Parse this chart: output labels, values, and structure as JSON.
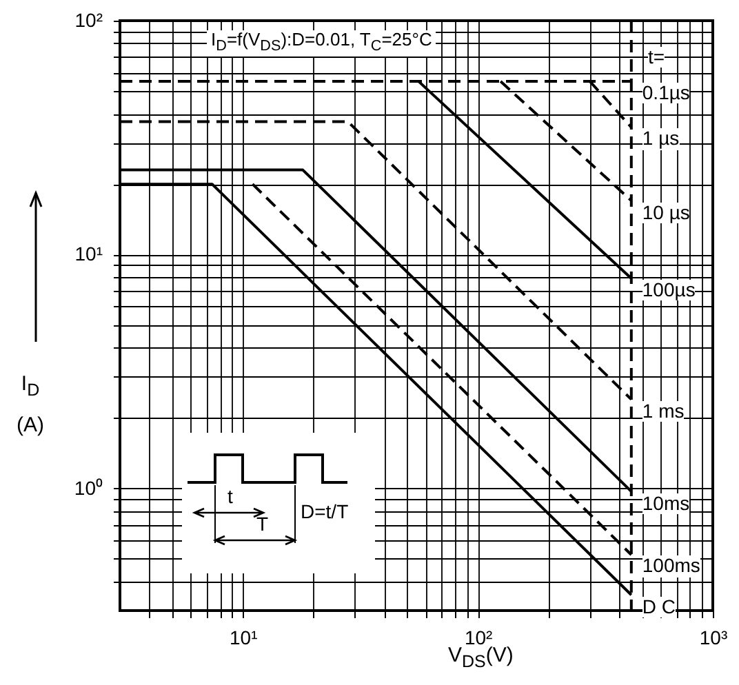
{
  "chart_data": {
    "type": "line",
    "xlabel": "V$_{DS}$(V)",
    "ylabel": "I$_{D}$ (A)",
    "legend_title": "t=",
    "log": "xy",
    "grid": true,
    "legend": false,
    "marker": "none",
    "xlim": [
      3,
      1000
    ],
    "ylim": [
      0.3,
      100
    ],
    "xticks": [
      {
        "value": 4,
        "label": null
      },
      {
        "value": 5,
        "label": null
      },
      {
        "value": 6,
        "label": null
      },
      {
        "value": 7,
        "label": null
      },
      {
        "value": 8,
        "label": null
      },
      {
        "value": 9,
        "label": null
      },
      {
        "value": 10,
        "label": "10¹"
      },
      {
        "value": 20,
        "label": null
      },
      {
        "value": 30,
        "label": null
      },
      {
        "value": 40,
        "label": null
      },
      {
        "value": 50,
        "label": null
      },
      {
        "value": 60,
        "label": null
      },
      {
        "value": 70,
        "label": null
      },
      {
        "value": 80,
        "label": null
      },
      {
        "value": 90,
        "label": null
      },
      {
        "value": 100,
        "label": "10²"
      },
      {
        "value": 200,
        "label": null
      },
      {
        "value": 300,
        "label": null
      },
      {
        "value": 400,
        "label": null
      },
      {
        "value": 500,
        "label": null
      },
      {
        "value": 600,
        "label": null
      },
      {
        "value": 700,
        "label": null
      },
      {
        "value": 800,
        "label": null
      },
      {
        "value": 900,
        "label": null
      },
      {
        "value": 1000,
        "label": "10³"
      }
    ],
    "yticks": [
      {
        "value": 0.4,
        "label": null
      },
      {
        "value": 0.5,
        "label": null
      },
      {
        "value": 0.6,
        "label": null
      },
      {
        "value": 0.7,
        "label": null
      },
      {
        "value": 0.8,
        "label": null
      },
      {
        "value": 0.9,
        "label": null
      },
      {
        "value": 1,
        "label": "10⁰"
      },
      {
        "value": 2,
        "label": null
      },
      {
        "value": 3,
        "label": null
      },
      {
        "value": 4,
        "label": null
      },
      {
        "value": 5,
        "label": null
      },
      {
        "value": 6,
        "label": null
      },
      {
        "value": 7,
        "label": null
      },
      {
        "value": 8,
        "label": null
      },
      {
        "value": 9,
        "label": null
      },
      {
        "value": 10,
        "label": "10¹"
      },
      {
        "value": 20,
        "label": null
      },
      {
        "value": 30,
        "label": null
      },
      {
        "value": 40,
        "label": null
      },
      {
        "value": 50,
        "label": null
      },
      {
        "value": 60,
        "label": null
      },
      {
        "value": 70,
        "label": null
      },
      {
        "value": 80,
        "label": null
      },
      {
        "value": 90,
        "label": null
      },
      {
        "value": 100,
        "label": "10²"
      }
    ],
    "series": [
      {
        "name": "0.1µs",
        "color": "#000000",
        "line_style": "dashed",
        "x": [
          3,
          450
        ],
        "values": [
          55,
          55
        ]
      },
      {
        "name": "1 µs",
        "color": "#000000",
        "line_style": "dashed",
        "x": [
          300,
          450
        ],
        "values": [
          55,
          35
        ]
      },
      {
        "name": "10 µs",
        "color": "#000000",
        "line_style": "dashed",
        "x": [
          125,
          450
        ],
        "values": [
          55,
          17
        ]
      },
      {
        "name": "100µs",
        "color": "#000000",
        "line_style": "solid",
        "x": [
          56,
          450
        ],
        "values": [
          55,
          7.9
        ]
      },
      {
        "name": "1 ms",
        "color": "#000000",
        "line_style": "dashed",
        "x": [
          3,
          28,
          450
        ],
        "values": [
          37,
          37,
          2.4
        ]
      },
      {
        "name": "10ms",
        "color": "#000000",
        "line_style": "solid",
        "x": [
          3,
          18,
          450
        ],
        "values": [
          23,
          23,
          0.97
        ]
      },
      {
        "name": "100ms",
        "color": "#000000",
        "line_style": "dashed",
        "x": [
          11,
          450
        ],
        "values": [
          20,
          0.52
        ]
      },
      {
        "name": "D C",
        "color": "#000000",
        "line_style": "solid",
        "x": [
          3,
          7.4,
          450
        ],
        "values": [
          20,
          20,
          0.35
        ]
      }
    ],
    "ref_lines": [
      {
        "axis": "x",
        "value": 450,
        "label": null,
        "line_style": "dashed",
        "color": "#000000"
      }
    ],
    "annotations": [
      "I$_{D}$=f(V$_{DS}$):D=0.01, T$_{C}$=25°C",
      "t",
      "T",
      "D=t/T"
    ]
  }
}
